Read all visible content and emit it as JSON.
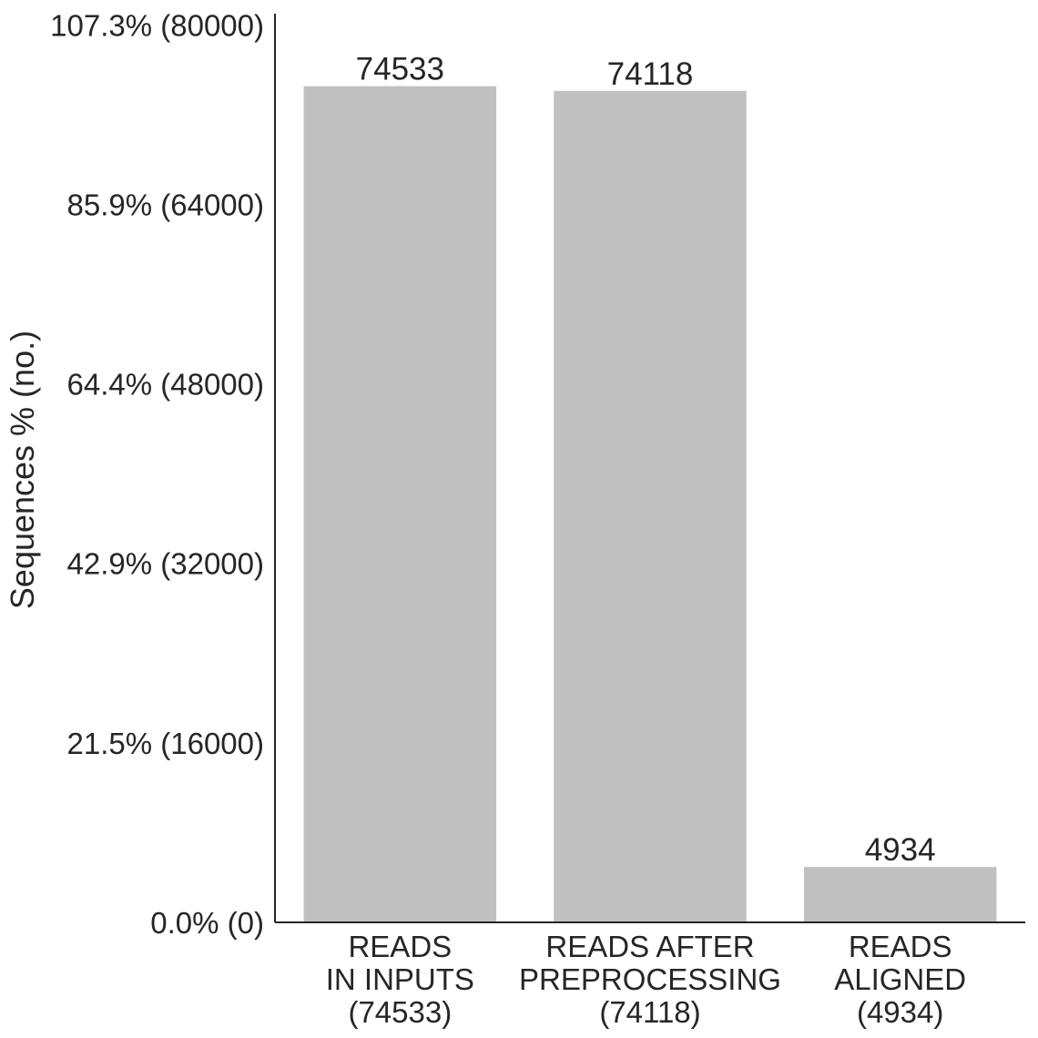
{
  "chart_data": {
    "type": "bar",
    "categories": [
      [
        "READS",
        "IN INPUTS",
        "(74533)"
      ],
      [
        "READS AFTER",
        "PREPROCESSING",
        "(74118)"
      ],
      [
        "READS",
        "ALIGNED",
        "(4934)"
      ]
    ],
    "values": [
      74533,
      74118,
      4934
    ],
    "value_labels": [
      "74533",
      "74118",
      "4934"
    ],
    "ylabel": "Sequences % (no.)",
    "ylim": [
      0,
      81000
    ],
    "yticks": [
      0,
      16000,
      32000,
      48000,
      64000,
      80000
    ],
    "ytick_labels": [
      "0.0% (0)",
      "21.5% (16000)",
      "42.9% (32000)",
      "64.4% (48000)",
      "85.9% (64000)",
      "107.3% (80000)"
    ],
    "grid": false,
    "legend": "none",
    "bar_color": "#c0c0c0",
    "axis_color": "#262626",
    "text_color": "#262626"
  }
}
